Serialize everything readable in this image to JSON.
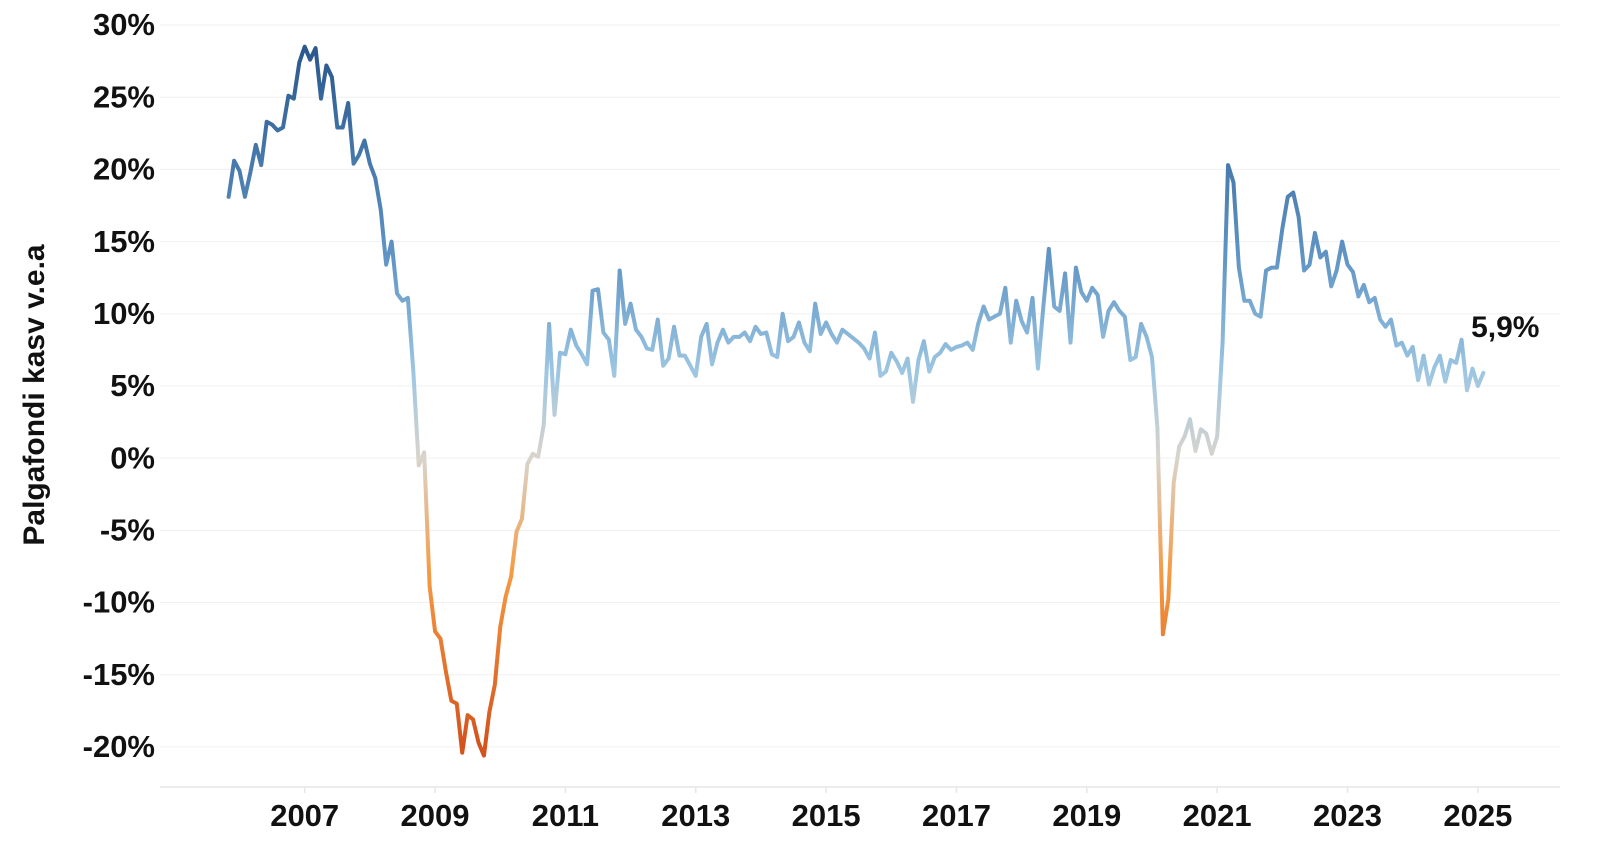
{
  "chart_data": {
    "type": "line",
    "y_label": "Palgafondi kasv v.e.a",
    "annotation": "5,9%",
    "grid": true,
    "xlim": [
      2004.78,
      2026.26
    ],
    "xticks": [
      2007,
      2009,
      2011,
      2013,
      2015,
      2017,
      2019,
      2021,
      2023,
      2025
    ],
    "ylim": [
      -22.5,
      31
    ],
    "yticks": [
      {
        "value": 30,
        "label": "30%"
      },
      {
        "value": 25,
        "label": "25%"
      },
      {
        "value": 20,
        "label": "20%"
      },
      {
        "value": 15,
        "label": "15%"
      },
      {
        "value": 10,
        "label": "10%"
      },
      {
        "value": 5,
        "label": "5%"
      },
      {
        "value": 0,
        "label": "0%"
      },
      {
        "value": -5,
        "label": "-5%"
      },
      {
        "value": -10,
        "label": "-10%"
      },
      {
        "value": -15,
        "label": "-15%"
      },
      {
        "value": -20,
        "label": "-20%"
      }
    ],
    "color_scale": [
      {
        "value": -20,
        "color": "#d4521c"
      },
      {
        "value": -8,
        "color": "#f59a42"
      },
      {
        "value": 0,
        "color": "#d9d4cc"
      },
      {
        "value": 6,
        "color": "#9cc6e2"
      },
      {
        "value": 14,
        "color": "#5f94c4"
      },
      {
        "value": 28,
        "color": "#2c5a8f"
      }
    ],
    "x": [
      2005.833,
      2005.917,
      2006.0,
      2006.083,
      2006.167,
      2006.25,
      2006.333,
      2006.417,
      2006.5,
      2006.583,
      2006.667,
      2006.75,
      2006.833,
      2006.917,
      2007.0,
      2007.083,
      2007.167,
      2007.25,
      2007.333,
      2007.417,
      2007.5,
      2007.583,
      2007.667,
      2007.75,
      2007.833,
      2007.917,
      2008.0,
      2008.083,
      2008.167,
      2008.25,
      2008.333,
      2008.417,
      2008.5,
      2008.583,
      2008.667,
      2008.75,
      2008.833,
      2008.917,
      2009.0,
      2009.083,
      2009.167,
      2009.25,
      2009.333,
      2009.417,
      2009.5,
      2009.583,
      2009.667,
      2009.75,
      2009.833,
      2009.917,
      2010.0,
      2010.083,
      2010.167,
      2010.25,
      2010.333,
      2010.417,
      2010.5,
      2010.583,
      2010.667,
      2010.75,
      2010.833,
      2010.917,
      2011.0,
      2011.083,
      2011.167,
      2011.25,
      2011.333,
      2011.417,
      2011.5,
      2011.583,
      2011.667,
      2011.75,
      2011.833,
      2011.917,
      2012.0,
      2012.083,
      2012.167,
      2012.25,
      2012.333,
      2012.417,
      2012.5,
      2012.583,
      2012.667,
      2012.75,
      2012.833,
      2012.917,
      2013.0,
      2013.083,
      2013.167,
      2013.25,
      2013.333,
      2013.417,
      2013.5,
      2013.583,
      2013.667,
      2013.75,
      2013.833,
      2013.917,
      2014.0,
      2014.083,
      2014.167,
      2014.25,
      2014.333,
      2014.417,
      2014.5,
      2014.583,
      2014.667,
      2014.75,
      2014.833,
      2014.917,
      2015.0,
      2015.083,
      2015.167,
      2015.25,
      2015.333,
      2015.417,
      2015.5,
      2015.583,
      2015.667,
      2015.75,
      2015.833,
      2015.917,
      2016.0,
      2016.083,
      2016.167,
      2016.25,
      2016.333,
      2016.417,
      2016.5,
      2016.583,
      2016.667,
      2016.75,
      2016.833,
      2016.917,
      2017.0,
      2017.083,
      2017.167,
      2017.25,
      2017.333,
      2017.417,
      2017.5,
      2017.583,
      2017.667,
      2017.75,
      2017.833,
      2017.917,
      2018.0,
      2018.083,
      2018.167,
      2018.25,
      2018.333,
      2018.417,
      2018.5,
      2018.583,
      2018.667,
      2018.75,
      2018.833,
      2018.917,
      2019.0,
      2019.083,
      2019.167,
      2019.25,
      2019.333,
      2019.417,
      2019.5,
      2019.583,
      2019.667,
      2019.75,
      2019.833,
      2019.917,
      2020.0,
      2020.083,
      2020.167,
      2020.25,
      2020.333,
      2020.417,
      2020.5,
      2020.583,
      2020.667,
      2020.75,
      2020.833,
      2020.917,
      2021.0,
      2021.083,
      2021.167,
      2021.25,
      2021.333,
      2021.417,
      2021.5,
      2021.583,
      2021.667,
      2021.75,
      2021.833,
      2021.917,
      2022.0,
      2022.083,
      2022.167,
      2022.25,
      2022.333,
      2022.417,
      2022.5,
      2022.583,
      2022.667,
      2022.75,
      2022.833,
      2022.917,
      2023.0,
      2023.083,
      2023.167,
      2023.25,
      2023.333,
      2023.417,
      2023.5,
      2023.583,
      2023.667,
      2023.75,
      2023.833,
      2023.917,
      2024.0,
      2024.083,
      2024.167,
      2024.25,
      2024.333,
      2024.417,
      2024.5,
      2024.583,
      2024.667,
      2024.75,
      2024.833,
      2024.917,
      2025.0,
      2025.083
    ],
    "values": [
      18.1,
      20.6,
      19.9,
      18.1,
      19.8,
      21.7,
      20.3,
      23.3,
      23.1,
      22.7,
      22.9,
      25.1,
      24.9,
      27.4,
      28.5,
      27.6,
      28.4,
      24.9,
      27.2,
      26.4,
      22.9,
      22.9,
      24.6,
      20.4,
      21.0,
      22.0,
      20.4,
      19.4,
      17.2,
      13.4,
      15.0,
      11.4,
      10.9,
      11.1,
      6.0,
      -0.5,
      0.4,
      -8.9,
      -12.0,
      -12.5,
      -14.8,
      -16.8,
      -17.0,
      -20.4,
      -17.8,
      -18.1,
      -19.7,
      -20.6,
      -17.6,
      -15.7,
      -11.7,
      -9.6,
      -8.2,
      -5.1,
      -4.2,
      -0.4,
      0.3,
      0.1,
      2.3,
      9.3,
      3.0,
      7.3,
      7.2,
      8.9,
      7.8,
      7.2,
      6.5,
      11.6,
      11.7,
      8.7,
      8.2,
      5.7,
      13.0,
      9.3,
      10.7,
      8.9,
      8.4,
      7.6,
      7.5,
      9.6,
      6.4,
      6.9,
      9.1,
      7.1,
      7.1,
      6.4,
      5.7,
      8.4,
      9.3,
      6.5,
      8.0,
      8.9,
      8.0,
      8.4,
      8.4,
      8.7,
      8.1,
      9.1,
      8.6,
      8.7,
      7.2,
      7.0,
      10.0,
      8.1,
      8.4,
      9.4,
      8.0,
      7.4,
      10.7,
      8.6,
      9.4,
      8.6,
      8.0,
      8.9,
      8.6,
      8.3,
      8.0,
      7.6,
      6.9,
      8.7,
      5.7,
      6.0,
      7.3,
      6.7,
      5.9,
      6.9,
      3.9,
      6.8,
      8.1,
      6.0,
      7.0,
      7.3,
      7.9,
      7.5,
      7.7,
      7.8,
      8.0,
      7.5,
      9.3,
      10.5,
      9.6,
      9.8,
      10.0,
      11.8,
      8.0,
      10.9,
      9.5,
      8.7,
      11.1,
      6.2,
      10.5,
      14.5,
      10.5,
      10.2,
      12.8,
      8.0,
      13.2,
      11.5,
      10.9,
      11.8,
      11.3,
      8.4,
      10.2,
      10.8,
      10.2,
      9.8,
      6.8,
      7.0,
      9.3,
      8.4,
      7.0,
      2.1,
      -12.2,
      -9.8,
      -1.7,
      0.8,
      1.5,
      2.7,
      0.5,
      2.0,
      1.7,
      0.3,
      1.5,
      8.0,
      20.3,
      19.1,
      13.2,
      10.9,
      10.9,
      10.0,
      9.8,
      13.0,
      13.2,
      13.2,
      15.9,
      18.1,
      18.4,
      16.7,
      13.0,
      13.4,
      15.6,
      13.9,
      14.3,
      11.9,
      13.0,
      15.0,
      13.4,
      12.9,
      11.2,
      12.0,
      10.8,
      11.1,
      9.6,
      9.1,
      9.6,
      7.8,
      8.0,
      7.1,
      7.7,
      5.4,
      7.1,
      5.1,
      6.3,
      7.1,
      5.3,
      6.8,
      6.6,
      8.2,
      4.7,
      6.2,
      5.0,
      5.9
    ]
  }
}
